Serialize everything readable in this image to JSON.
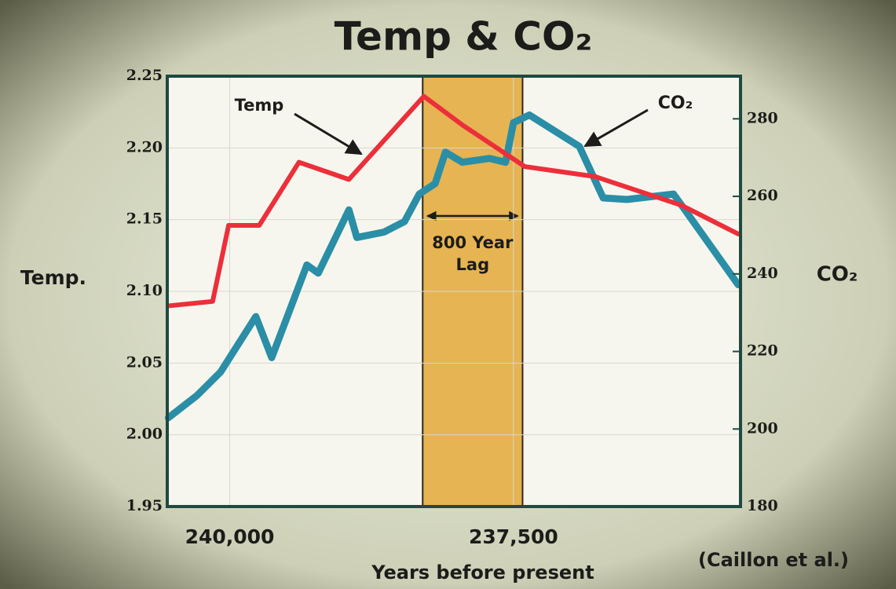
{
  "chart_data": {
    "type": "line",
    "title": "Temp & CO₂",
    "x_label": "Years before present",
    "y_label": "Temp.",
    "y2_label": "CO₂",
    "source": "(Caillon et al.)",
    "xlim": [
      240550,
      235500
    ],
    "xticks": [
      {
        "value": 240000,
        "label": "240,000"
      },
      {
        "value": 237500,
        "label": "237,500"
      }
    ],
    "ylim": [
      1.95,
      2.25
    ],
    "yticks": [
      1.95,
      {
        "value": 2,
        "label": "2.00"
      },
      2.05,
      {
        "value": 2.1,
        "label": "2.10"
      },
      2.15,
      {
        "value": 2.2,
        "label": "2.20"
      },
      2.25
    ],
    "y2lim": [
      180,
      291
    ],
    "y2ticks": [
      180,
      200,
      220,
      240,
      260,
      280
    ],
    "grid": true,
    "band": {
      "x": [
        238300,
        237420
      ],
      "label": [
        "800 Year",
        "Lag"
      ],
      "color": "#e6b452"
    },
    "series": [
      {
        "name": "CO₂",
        "color": "#2a8ea6",
        "axis": "y2",
        "x": [
          240540,
          240290,
          240080,
          239770,
          239630,
          239320,
          239220,
          238950,
          238880,
          238640,
          238460,
          238330,
          238190,
          238100,
          237950,
          237710,
          237570,
          237500,
          237360,
          236920,
          236710,
          236500,
          236090,
          235990,
          235520
        ],
        "values": [
          202.9,
          208.6,
          214.7,
          229,
          218.4,
          242.3,
          240.2,
          256.5,
          249.4,
          250.8,
          253.5,
          260.6,
          263.3,
          271.4,
          268.8,
          269.8,
          268.8,
          279,
          281,
          272.9,
          259.6,
          259.2,
          260.6,
          256.5,
          237.2
        ]
      },
      {
        "name": "Temp",
        "color": "#ec2f3a",
        "x": [
          240530,
          240150,
          240010,
          239740,
          239390,
          238950,
          238290,
          237950,
          237400,
          236780,
          236020,
          235520
        ],
        "values": [
          2.09,
          2.093,
          2.146,
          2.146,
          2.19,
          2.178,
          2.236,
          2.216,
          2.187,
          2.18,
          2.16,
          2.14
        ]
      }
    ]
  }
}
